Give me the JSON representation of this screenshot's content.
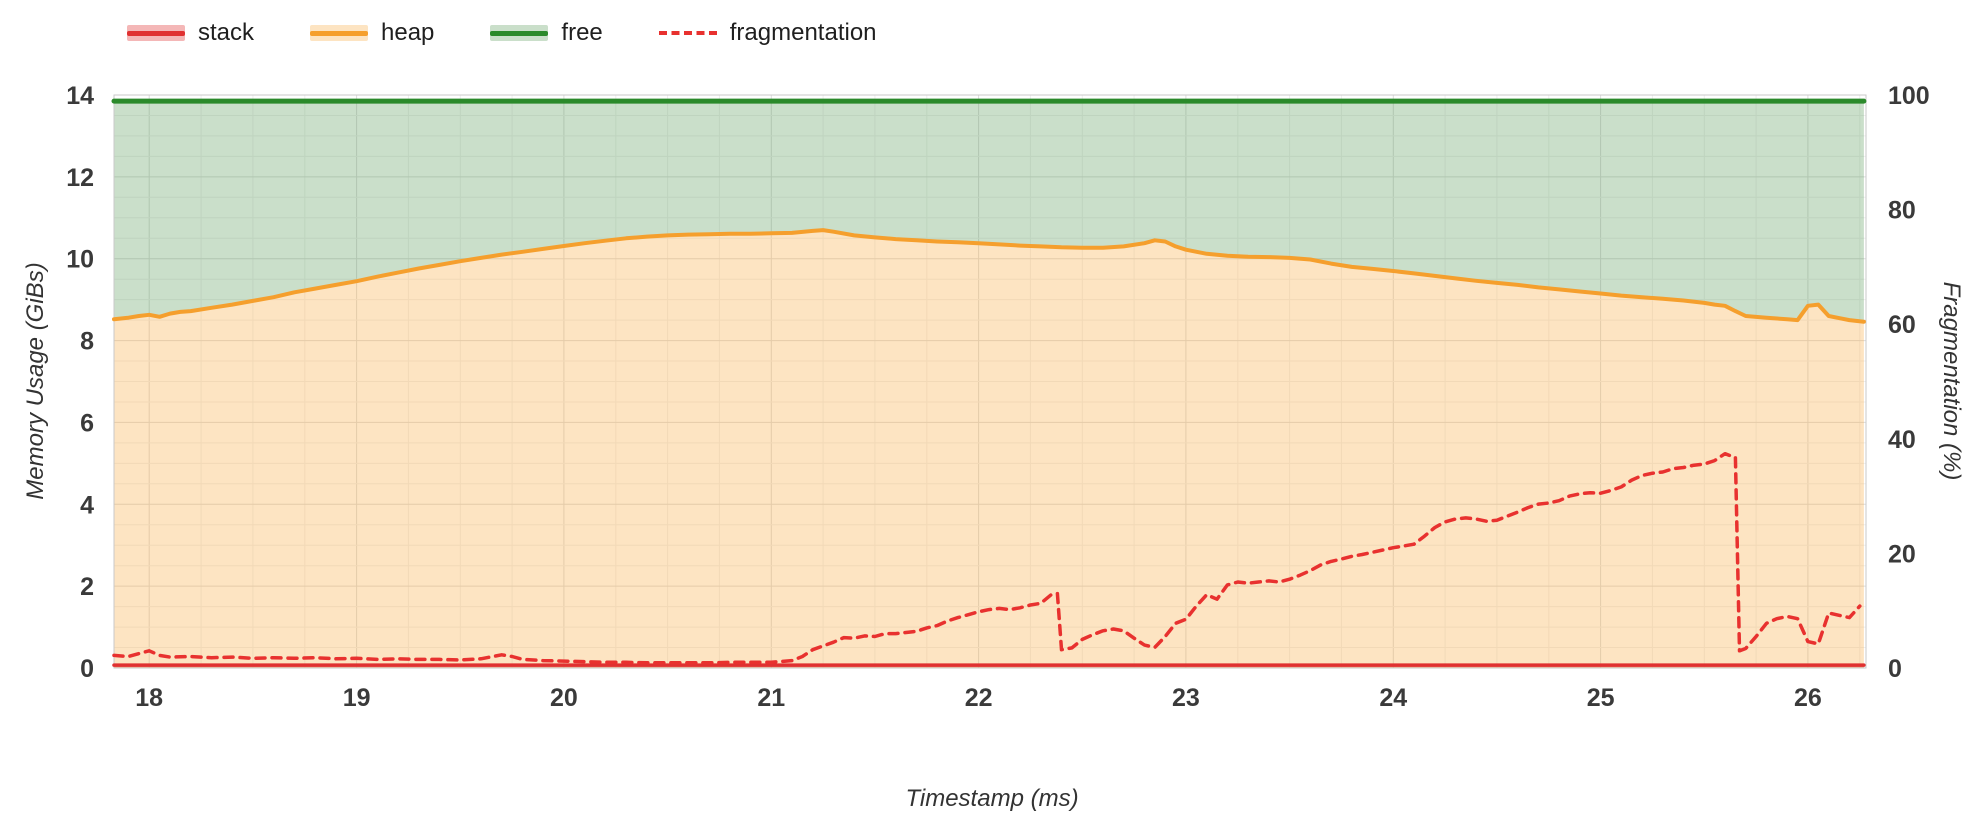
{
  "chart_data": {
    "type": "area",
    "title": "",
    "xlabel": "Timestamp (ms)",
    "ylabel_left": "Memory Usage (GiBs)",
    "ylabel_right": "Fragmentation (%)",
    "xlim": [
      17.83,
      26.28
    ],
    "ylim_left": [
      0,
      14
    ],
    "ylim_right": [
      0,
      100
    ],
    "x_ticks": [
      18,
      19,
      20,
      21,
      22,
      23,
      24,
      25,
      26
    ],
    "y_ticks_left": [
      0,
      2,
      4,
      6,
      8,
      10,
      12,
      14
    ],
    "y_ticks_right": [
      0,
      20,
      40,
      60,
      80,
      100
    ],
    "legend_position": "top-left",
    "grid": {
      "on": true,
      "major_color": "#dcdcdc",
      "minor_color": "#efefef",
      "x_minor_step": 0.25,
      "y_minor_step": 0.5
    },
    "series": [
      {
        "name": "stack",
        "axis": "left",
        "type": "area",
        "baseline": 0,
        "line_color": "#e03131",
        "fill_color": "rgba(224,49,49,0.35)",
        "line_width": 3.5,
        "points": [
          [
            17.83,
            0.07
          ],
          [
            26.27,
            0.07
          ]
        ]
      },
      {
        "name": "heap",
        "axis": "left",
        "type": "area",
        "baseline": 0,
        "line_color": "#f59f2d",
        "fill_color": "rgba(247,166,52,0.30)",
        "line_width": 4,
        "points": [
          [
            17.83,
            8.52
          ],
          [
            17.9,
            8.56
          ],
          [
            17.95,
            8.6
          ],
          [
            18.0,
            8.63
          ],
          [
            18.05,
            8.58
          ],
          [
            18.1,
            8.66
          ],
          [
            18.15,
            8.7
          ],
          [
            18.2,
            8.72
          ],
          [
            18.3,
            8.8
          ],
          [
            18.4,
            8.88
          ],
          [
            18.5,
            8.97
          ],
          [
            18.6,
            9.06
          ],
          [
            18.7,
            9.18
          ],
          [
            18.8,
            9.27
          ],
          [
            18.9,
            9.36
          ],
          [
            19.0,
            9.45
          ],
          [
            19.1,
            9.56
          ],
          [
            19.2,
            9.66
          ],
          [
            19.3,
            9.76
          ],
          [
            19.4,
            9.85
          ],
          [
            19.5,
            9.94
          ],
          [
            19.6,
            10.02
          ],
          [
            19.7,
            10.1
          ],
          [
            19.8,
            10.17
          ],
          [
            19.9,
            10.24
          ],
          [
            20.0,
            10.31
          ],
          [
            20.1,
            10.38
          ],
          [
            20.2,
            10.44
          ],
          [
            20.3,
            10.5
          ],
          [
            20.4,
            10.54
          ],
          [
            20.5,
            10.57
          ],
          [
            20.6,
            10.59
          ],
          [
            20.7,
            10.6
          ],
          [
            20.8,
            10.61
          ],
          [
            20.9,
            10.61
          ],
          [
            21.0,
            10.62
          ],
          [
            21.1,
            10.63
          ],
          [
            21.2,
            10.68
          ],
          [
            21.25,
            10.7
          ],
          [
            21.3,
            10.66
          ],
          [
            21.4,
            10.57
          ],
          [
            21.5,
            10.52
          ],
          [
            21.6,
            10.48
          ],
          [
            21.7,
            10.45
          ],
          [
            21.8,
            10.42
          ],
          [
            21.9,
            10.4
          ],
          [
            22.0,
            10.38
          ],
          [
            22.1,
            10.35
          ],
          [
            22.2,
            10.32
          ],
          [
            22.3,
            10.3
          ],
          [
            22.4,
            10.28
          ],
          [
            22.5,
            10.27
          ],
          [
            22.6,
            10.27
          ],
          [
            22.7,
            10.3
          ],
          [
            22.8,
            10.38
          ],
          [
            22.85,
            10.45
          ],
          [
            22.9,
            10.42
          ],
          [
            22.95,
            10.3
          ],
          [
            23.0,
            10.22
          ],
          [
            23.1,
            10.12
          ],
          [
            23.2,
            10.07
          ],
          [
            23.3,
            10.05
          ],
          [
            23.4,
            10.04
          ],
          [
            23.5,
            10.02
          ],
          [
            23.6,
            9.98
          ],
          [
            23.7,
            9.88
          ],
          [
            23.8,
            9.8
          ],
          [
            23.9,
            9.75
          ],
          [
            24.0,
            9.7
          ],
          [
            24.1,
            9.64
          ],
          [
            24.2,
            9.58
          ],
          [
            24.3,
            9.52
          ],
          [
            24.4,
            9.46
          ],
          [
            24.5,
            9.41
          ],
          [
            24.6,
            9.36
          ],
          [
            24.7,
            9.3
          ],
          [
            24.8,
            9.25
          ],
          [
            24.9,
            9.2
          ],
          [
            25.0,
            9.15
          ],
          [
            25.1,
            9.1
          ],
          [
            25.2,
            9.06
          ],
          [
            25.3,
            9.02
          ],
          [
            25.4,
            8.98
          ],
          [
            25.5,
            8.92
          ],
          [
            25.55,
            8.88
          ],
          [
            25.6,
            8.85
          ],
          [
            25.65,
            8.72
          ],
          [
            25.7,
            8.6
          ],
          [
            25.8,
            8.56
          ],
          [
            25.9,
            8.52
          ],
          [
            25.95,
            8.5
          ],
          [
            26.0,
            8.85
          ],
          [
            26.05,
            8.88
          ],
          [
            26.1,
            8.6
          ],
          [
            26.15,
            8.55
          ],
          [
            26.2,
            8.5
          ],
          [
            26.27,
            8.46
          ]
        ]
      },
      {
        "name": "free",
        "axis": "left",
        "type": "area",
        "fill_to_series": "heap",
        "line_color": "#2b8a2b",
        "fill_color": "rgba(80,150,80,0.30)",
        "line_width": 5,
        "points": [
          [
            17.83,
            13.85
          ],
          [
            26.27,
            13.85
          ]
        ]
      },
      {
        "name": "fragmentation",
        "axis": "right",
        "type": "line",
        "dashed": true,
        "line_color": "#e8312f",
        "line_width": 3.5,
        "points": [
          [
            17.83,
            2.2
          ],
          [
            17.9,
            2.0
          ],
          [
            18.0,
            3.0
          ],
          [
            18.05,
            2.2
          ],
          [
            18.1,
            1.9
          ],
          [
            18.2,
            2.0
          ],
          [
            18.3,
            1.8
          ],
          [
            18.4,
            1.9
          ],
          [
            18.5,
            1.7
          ],
          [
            18.6,
            1.8
          ],
          [
            18.7,
            1.7
          ],
          [
            18.8,
            1.8
          ],
          [
            18.9,
            1.6
          ],
          [
            19.0,
            1.7
          ],
          [
            19.1,
            1.5
          ],
          [
            19.2,
            1.6
          ],
          [
            19.3,
            1.5
          ],
          [
            19.4,
            1.5
          ],
          [
            19.5,
            1.4
          ],
          [
            19.6,
            1.6
          ],
          [
            19.7,
            2.3
          ],
          [
            19.75,
            2.0
          ],
          [
            19.8,
            1.5
          ],
          [
            19.9,
            1.3
          ],
          [
            20.0,
            1.2
          ],
          [
            20.1,
            1.1
          ],
          [
            20.2,
            1.0
          ],
          [
            20.3,
            1.0
          ],
          [
            20.4,
            0.9
          ],
          [
            20.5,
            0.9
          ],
          [
            20.6,
            0.9
          ],
          [
            20.7,
            0.9
          ],
          [
            20.8,
            1.0
          ],
          [
            20.9,
            1.0
          ],
          [
            21.0,
            1.0
          ],
          [
            21.1,
            1.3
          ],
          [
            21.15,
            2.0
          ],
          [
            21.2,
            3.2
          ],
          [
            21.3,
            4.5
          ],
          [
            21.35,
            5.3
          ],
          [
            21.4,
            5.2
          ],
          [
            21.45,
            5.6
          ],
          [
            21.5,
            5.5
          ],
          [
            21.55,
            6.0
          ],
          [
            21.6,
            6.0
          ],
          [
            21.7,
            6.4
          ],
          [
            21.75,
            7.0
          ],
          [
            21.8,
            7.4
          ],
          [
            21.85,
            8.2
          ],
          [
            21.9,
            8.8
          ],
          [
            22.0,
            9.8
          ],
          [
            22.05,
            10.2
          ],
          [
            22.1,
            10.4
          ],
          [
            22.15,
            10.2
          ],
          [
            22.2,
            10.5
          ],
          [
            22.25,
            11.0
          ],
          [
            22.3,
            11.3
          ],
          [
            22.35,
            12.8
          ],
          [
            22.38,
            13.0
          ],
          [
            22.4,
            3.2
          ],
          [
            22.45,
            3.5
          ],
          [
            22.5,
            5.0
          ],
          [
            22.55,
            5.8
          ],
          [
            22.6,
            6.5
          ],
          [
            22.65,
            6.8
          ],
          [
            22.7,
            6.5
          ],
          [
            22.75,
            5.2
          ],
          [
            22.8,
            4.0
          ],
          [
            22.85,
            3.6
          ],
          [
            22.9,
            5.5
          ],
          [
            22.95,
            7.8
          ],
          [
            23.0,
            8.5
          ],
          [
            23.05,
            10.8
          ],
          [
            23.1,
            12.8
          ],
          [
            23.15,
            12.0
          ],
          [
            23.2,
            14.5
          ],
          [
            23.25,
            15.0
          ],
          [
            23.3,
            14.8
          ],
          [
            23.35,
            15.0
          ],
          [
            23.4,
            15.2
          ],
          [
            23.45,
            15.0
          ],
          [
            23.5,
            15.5
          ],
          [
            23.55,
            16.2
          ],
          [
            23.6,
            17.0
          ],
          [
            23.65,
            18.0
          ],
          [
            23.7,
            18.6
          ],
          [
            23.75,
            19.0
          ],
          [
            23.8,
            19.5
          ],
          [
            23.85,
            19.8
          ],
          [
            23.9,
            20.2
          ],
          [
            24.0,
            21.0
          ],
          [
            24.05,
            21.3
          ],
          [
            24.1,
            21.6
          ],
          [
            24.15,
            23.0
          ],
          [
            24.2,
            24.5
          ],
          [
            24.25,
            25.5
          ],
          [
            24.3,
            26.0
          ],
          [
            24.35,
            26.2
          ],
          [
            24.4,
            26.0
          ],
          [
            24.45,
            25.6
          ],
          [
            24.5,
            25.8
          ],
          [
            24.55,
            26.5
          ],
          [
            24.6,
            27.2
          ],
          [
            24.65,
            28.0
          ],
          [
            24.7,
            28.6
          ],
          [
            24.75,
            28.8
          ],
          [
            24.8,
            29.2
          ],
          [
            24.85,
            30.0
          ],
          [
            24.9,
            30.4
          ],
          [
            24.95,
            30.6
          ],
          [
            25.0,
            30.5
          ],
          [
            25.05,
            31.0
          ],
          [
            25.1,
            31.6
          ],
          [
            25.15,
            32.8
          ],
          [
            25.2,
            33.6
          ],
          [
            25.25,
            34.0
          ],
          [
            25.3,
            34.2
          ],
          [
            25.35,
            34.8
          ],
          [
            25.4,
            35.0
          ],
          [
            25.45,
            35.4
          ],
          [
            25.5,
            35.6
          ],
          [
            25.55,
            36.2
          ],
          [
            25.6,
            37.4
          ],
          [
            25.63,
            37.0
          ],
          [
            25.65,
            36.8
          ],
          [
            25.67,
            3.0
          ],
          [
            25.7,
            3.4
          ],
          [
            25.75,
            5.5
          ],
          [
            25.8,
            7.8
          ],
          [
            25.85,
            8.6
          ],
          [
            25.9,
            9.0
          ],
          [
            25.95,
            8.6
          ],
          [
            26.0,
            4.6
          ],
          [
            26.05,
            4.2
          ],
          [
            26.1,
            9.6
          ],
          [
            26.15,
            9.2
          ],
          [
            26.2,
            8.8
          ],
          [
            26.25,
            10.8
          ]
        ]
      }
    ]
  }
}
